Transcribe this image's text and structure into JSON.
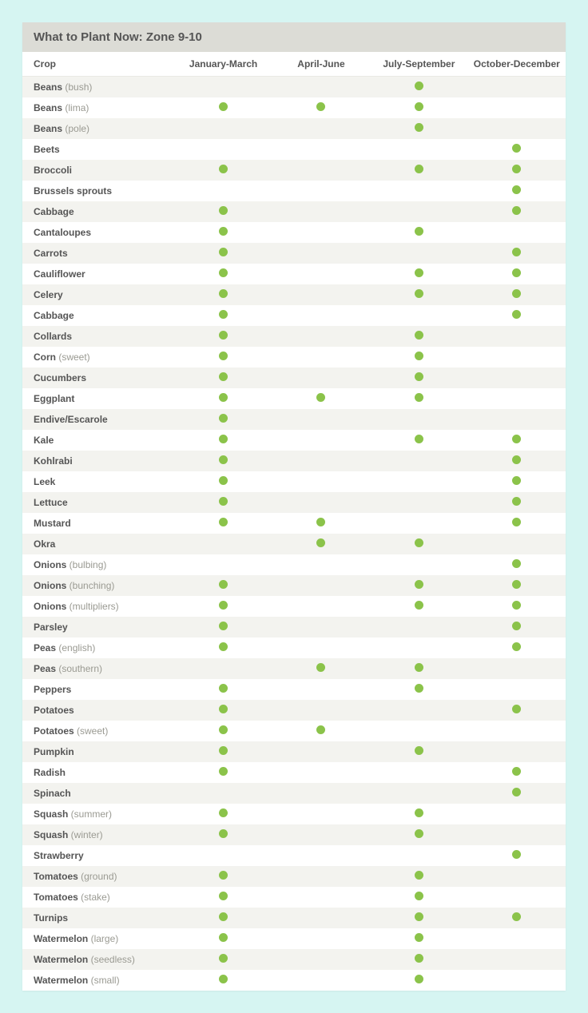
{
  "title": "What to Plant Now: Zone 9-10",
  "columns": {
    "crop": "Crop",
    "periods": [
      "January-March",
      "April-June",
      "July-September",
      "October-December"
    ]
  },
  "dot_color": "#8bc34a",
  "row_colors": {
    "even": "#f3f3ef",
    "odd": "#ffffff"
  },
  "rows": [
    {
      "name": "Beans",
      "variant": "bush",
      "marks": [
        0,
        0,
        1,
        0
      ]
    },
    {
      "name": "Beans",
      "variant": "lima",
      "marks": [
        1,
        1,
        1,
        0
      ]
    },
    {
      "name": "Beans",
      "variant": "pole",
      "marks": [
        0,
        0,
        1,
        0
      ]
    },
    {
      "name": "Beets",
      "variant": null,
      "marks": [
        0,
        0,
        0,
        1
      ]
    },
    {
      "name": "Broccoli",
      "variant": null,
      "marks": [
        1,
        0,
        1,
        1
      ]
    },
    {
      "name": "Brussels sprouts",
      "variant": null,
      "marks": [
        0,
        0,
        0,
        1
      ]
    },
    {
      "name": "Cabbage",
      "variant": null,
      "marks": [
        1,
        0,
        0,
        1
      ]
    },
    {
      "name": "Cantaloupes",
      "variant": null,
      "marks": [
        1,
        0,
        1,
        0
      ]
    },
    {
      "name": "Carrots",
      "variant": null,
      "marks": [
        1,
        0,
        0,
        1
      ]
    },
    {
      "name": "Cauliflower",
      "variant": null,
      "marks": [
        1,
        0,
        1,
        1
      ]
    },
    {
      "name": "Celery",
      "variant": null,
      "marks": [
        1,
        0,
        1,
        1
      ]
    },
    {
      "name": "Cabbage",
      "variant": null,
      "marks": [
        1,
        0,
        0,
        1
      ]
    },
    {
      "name": "Collards",
      "variant": null,
      "marks": [
        1,
        0,
        1,
        0
      ]
    },
    {
      "name": "Corn",
      "variant": "sweet",
      "marks": [
        1,
        0,
        1,
        0
      ]
    },
    {
      "name": "Cucumbers",
      "variant": null,
      "marks": [
        1,
        0,
        1,
        0
      ]
    },
    {
      "name": "Eggplant",
      "variant": null,
      "marks": [
        1,
        1,
        1,
        0
      ]
    },
    {
      "name": "Endive/Escarole",
      "variant": null,
      "marks": [
        1,
        0,
        0,
        0
      ]
    },
    {
      "name": "Kale",
      "variant": null,
      "marks": [
        1,
        0,
        1,
        1
      ]
    },
    {
      "name": "Kohlrabi",
      "variant": null,
      "marks": [
        1,
        0,
        0,
        1
      ]
    },
    {
      "name": "Leek",
      "variant": null,
      "marks": [
        1,
        0,
        0,
        1
      ]
    },
    {
      "name": "Lettuce",
      "variant": null,
      "marks": [
        1,
        0,
        0,
        1
      ]
    },
    {
      "name": "Mustard",
      "variant": null,
      "marks": [
        1,
        1,
        0,
        1
      ]
    },
    {
      "name": "Okra",
      "variant": null,
      "marks": [
        0,
        1,
        1,
        0
      ]
    },
    {
      "name": "Onions",
      "variant": "bulbing",
      "marks": [
        0,
        0,
        0,
        1
      ]
    },
    {
      "name": "Onions",
      "variant": "bunching",
      "marks": [
        1,
        0,
        1,
        1
      ]
    },
    {
      "name": "Onions",
      "variant": "multipliers",
      "marks": [
        1,
        0,
        1,
        1
      ]
    },
    {
      "name": "Parsley",
      "variant": null,
      "marks": [
        1,
        0,
        0,
        1
      ]
    },
    {
      "name": "Peas",
      "variant": "english",
      "marks": [
        1,
        0,
        0,
        1
      ]
    },
    {
      "name": "Peas",
      "variant": "southern",
      "marks": [
        0,
        1,
        1,
        0
      ]
    },
    {
      "name": "Peppers",
      "variant": null,
      "marks": [
        1,
        0,
        1,
        0
      ]
    },
    {
      "name": "Potatoes",
      "variant": null,
      "marks": [
        1,
        0,
        0,
        1
      ]
    },
    {
      "name": "Potatoes",
      "variant": "sweet",
      "marks": [
        1,
        1,
        0,
        0
      ]
    },
    {
      "name": "Pumpkin",
      "variant": null,
      "marks": [
        1,
        0,
        1,
        0
      ]
    },
    {
      "name": "Radish",
      "variant": null,
      "marks": [
        1,
        0,
        0,
        1
      ]
    },
    {
      "name": "Spinach",
      "variant": null,
      "marks": [
        0,
        0,
        0,
        1
      ]
    },
    {
      "name": "Squash",
      "variant": "summer",
      "marks": [
        1,
        0,
        1,
        0
      ]
    },
    {
      "name": "Squash",
      "variant": "winter",
      "marks": [
        1,
        0,
        1,
        0
      ]
    },
    {
      "name": "Strawberry",
      "variant": null,
      "marks": [
        0,
        0,
        0,
        1
      ]
    },
    {
      "name": "Tomatoes",
      "variant": "ground",
      "marks": [
        1,
        0,
        1,
        0
      ]
    },
    {
      "name": "Tomatoes",
      "variant": "stake",
      "marks": [
        1,
        0,
        1,
        0
      ]
    },
    {
      "name": "Turnips",
      "variant": null,
      "marks": [
        1,
        0,
        1,
        1
      ]
    },
    {
      "name": "Watermelon",
      "variant": "large",
      "marks": [
        1,
        0,
        1,
        0
      ]
    },
    {
      "name": "Watermelon",
      "variant": "seedless",
      "marks": [
        1,
        0,
        1,
        0
      ]
    },
    {
      "name": "Watermelon",
      "variant": "small",
      "marks": [
        1,
        0,
        1,
        0
      ]
    }
  ]
}
